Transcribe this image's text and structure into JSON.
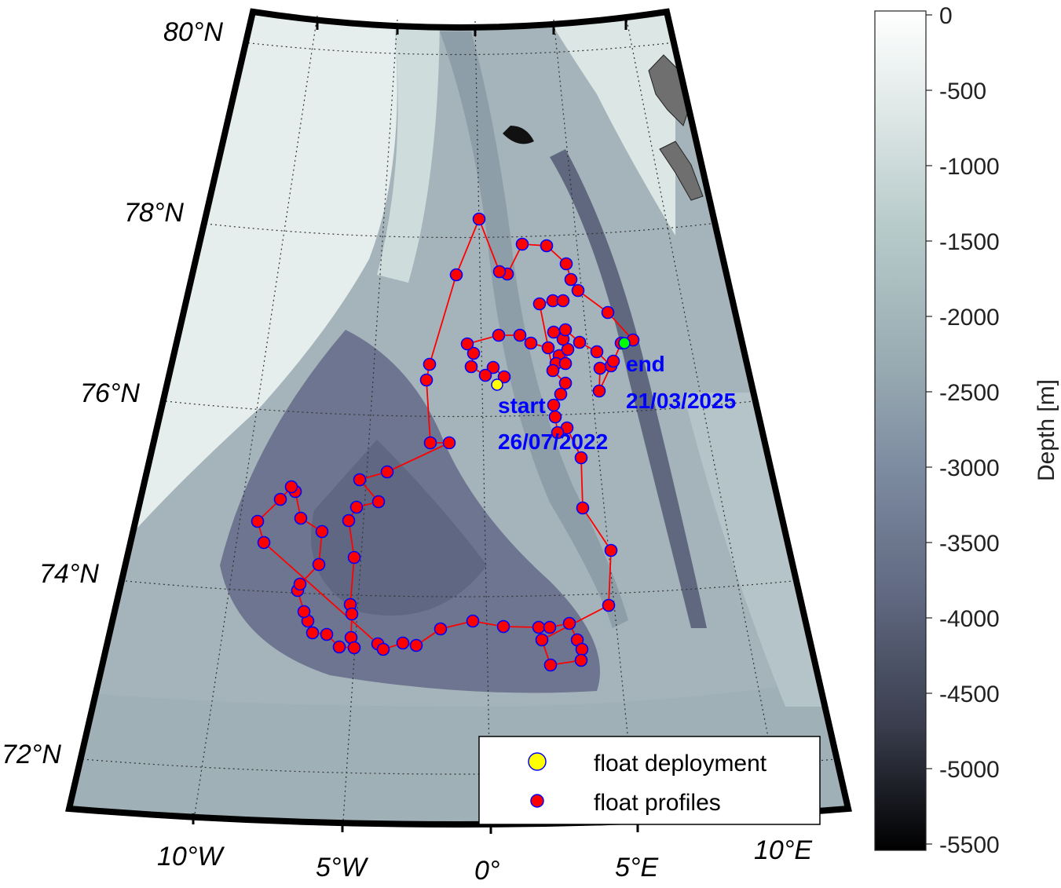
{
  "map": {
    "lat_labels": [
      "80°N",
      "78°N",
      "76°N",
      "74°N",
      "72°N"
    ],
    "lon_labels": [
      "10°W",
      "5°W",
      "0°",
      "5°E",
      "10°E"
    ],
    "start_annotation": {
      "line1": "start",
      "line2": "26/07/2022"
    },
    "end_annotation": {
      "line1": "end",
      "line2": "21/03/2025"
    }
  },
  "colorbar": {
    "title": "Depth [m]",
    "ticks": [
      "0",
      "-500",
      "-1000",
      "-1500",
      "-2000",
      "-2500",
      "-3000",
      "-3500",
      "-4000",
      "-4500",
      "-5000",
      "-5500"
    ]
  },
  "legend": {
    "deployment": "float deployment",
    "profiles": "float profiles"
  },
  "colors": {
    "track": "#ff0000",
    "profile_fill": "#ff0000",
    "profile_edge": "#0000ff",
    "deployment_fill": "#ffff00",
    "end_fill": "#00ff00",
    "annotation": "#0000ff"
  }
}
